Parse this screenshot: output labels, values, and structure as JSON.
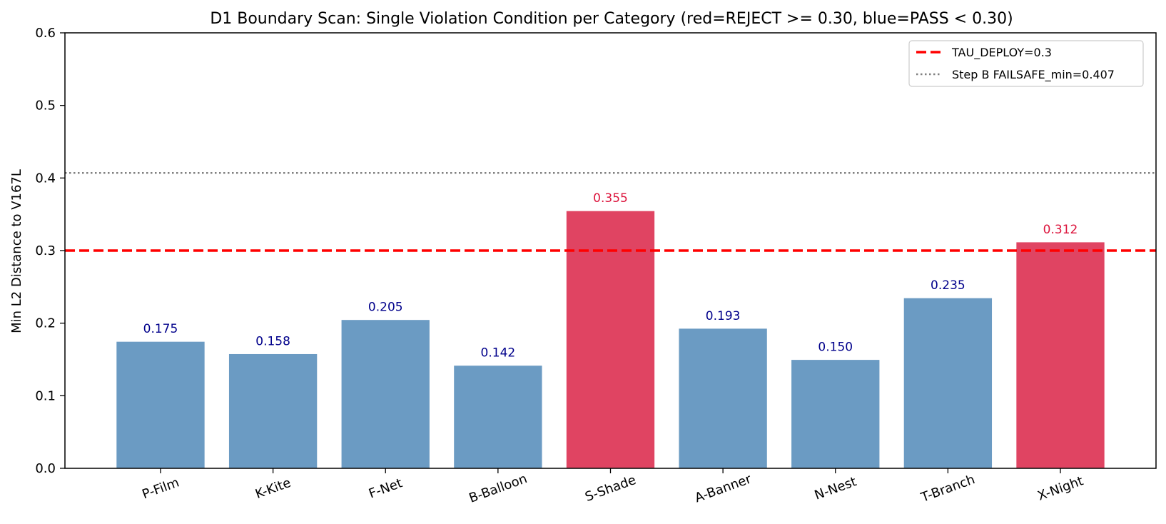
{
  "chart_data": {
    "type": "bar",
    "title": "D1 Boundary Scan: Single Violation Condition per Category (red=REJECT >= 0.30, blue=PASS < 0.30)",
    "xlabel": "",
    "ylabel": "Min L2 Distance to V167L",
    "ylim": [
      0,
      0.6
    ],
    "yticks": [
      "0.0",
      "0.1",
      "0.2",
      "0.3",
      "0.4",
      "0.5",
      "0.6"
    ],
    "categories": [
      "P-Film",
      "K-Kite",
      "F-Net",
      "B-Balloon",
      "S-Shade",
      "A-Banner",
      "N-Nest",
      "T-Branch",
      "X-Night"
    ],
    "values": [
      0.175,
      0.158,
      0.205,
      0.142,
      0.355,
      0.193,
      0.15,
      0.235,
      0.312
    ],
    "value_labels": [
      "0.175",
      "0.158",
      "0.205",
      "0.142",
      "0.355",
      "0.193",
      "0.150",
      "0.235",
      "0.312"
    ],
    "threshold": 0.3,
    "colors": {
      "pass": "#6b9bc3",
      "reject": "#e04462",
      "pass_label": "#00008b",
      "reject_label": "#dc143c",
      "tau_line": "#ff0000",
      "failsafe_line": "#808080"
    },
    "reference_lines": [
      {
        "name": "TAU_DEPLOY=0.3",
        "value": 0.3,
        "style": "dashed",
        "color": "#ff0000"
      },
      {
        "name": "Step B FAILSAFE_min=0.407",
        "value": 0.407,
        "style": "dotted",
        "color": "#808080"
      }
    ],
    "legend_position": "top-right",
    "grid": false
  }
}
